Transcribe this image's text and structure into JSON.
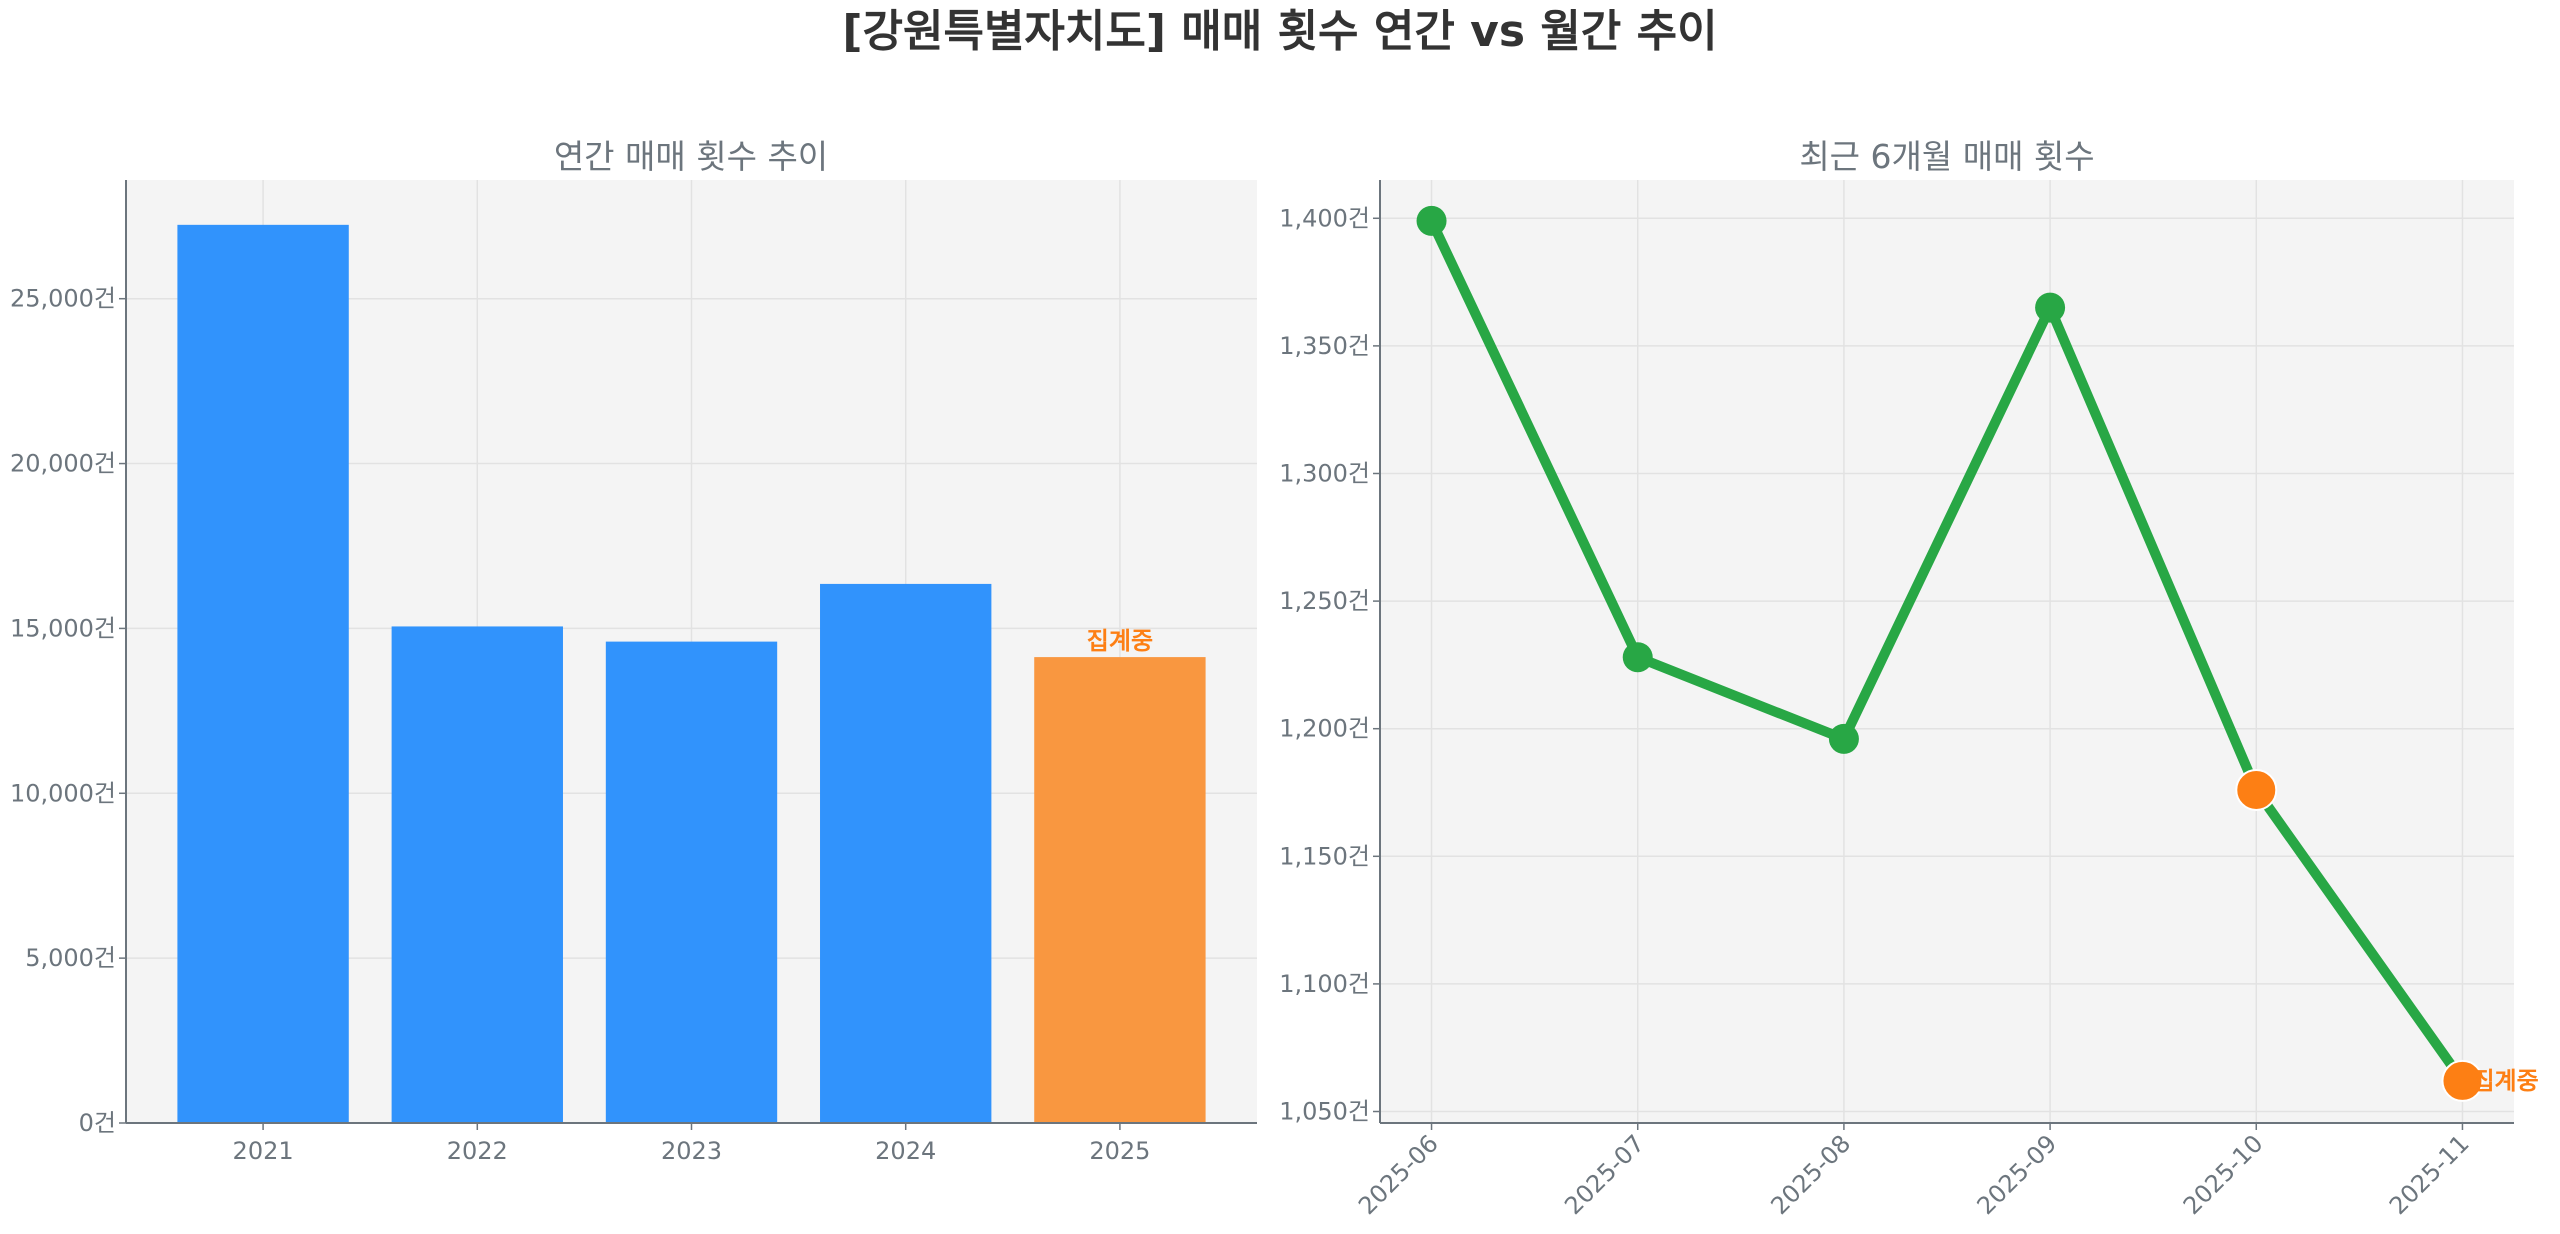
{
  "title": "[강원특별자치도] 매매 횟수 연간 vs 월간 추이",
  "colors": {
    "bar": "#3193FC",
    "bar_partial": "#F99740",
    "line": "#28A745",
    "marker_partial": "#FD7F14",
    "annotation": "#FD7F14",
    "plot_bg": "#F4F4F4"
  },
  "chart_data": [
    {
      "type": "bar",
      "title": "연간 매매 횟수 추이",
      "categories": [
        "2021",
        "2022",
        "2023",
        "2024",
        "2025"
      ],
      "values": [
        27240,
        15060,
        14600,
        16350,
        14130
      ],
      "partial": [
        false,
        false,
        false,
        false,
        true
      ],
      "annotation": "집계중",
      "ylim": [
        0,
        28600
      ],
      "yticks": [
        0,
        5000,
        10000,
        15000,
        20000,
        25000
      ],
      "ytick_labels": [
        "0건",
        "5,000건",
        "10,000건",
        "15,000건",
        "20,000건",
        "25,000건"
      ],
      "grid": true
    },
    {
      "type": "line",
      "title": "최근 6개월 매매 횟수",
      "categories": [
        "2025-06",
        "2025-07",
        "2025-08",
        "2025-09",
        "2025-10",
        "2025-11"
      ],
      "values": [
        1399,
        1228,
        1196,
        1365,
        1176,
        1062
      ],
      "partial": [
        false,
        false,
        false,
        false,
        true,
        true
      ],
      "annotation": "집계중",
      "ylim": [
        1045.5,
        1415
      ],
      "yticks": [
        1050,
        1100,
        1150,
        1200,
        1250,
        1300,
        1350,
        1400
      ],
      "ytick_labels": [
        "1,050건",
        "1,100건",
        "1,150건",
        "1,200건",
        "1,250건",
        "1,300건",
        "1,350건",
        "1,400건"
      ],
      "grid": true
    }
  ]
}
